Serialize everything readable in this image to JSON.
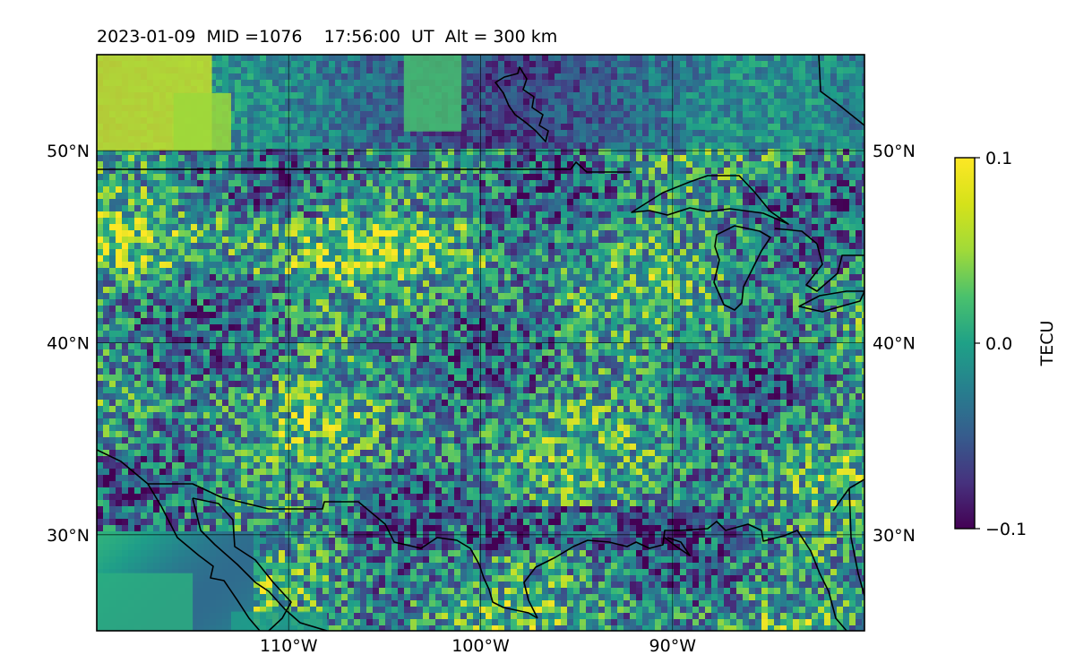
{
  "title": {
    "date": "2023-01-09",
    "mid": "MID =1076",
    "time": "17:56:00  UT",
    "alt": "Alt = 300 km"
  },
  "map": {
    "type": "heatmap",
    "projection": "plate-carree",
    "lon_range": [
      -120,
      -80
    ],
    "lat_range": [
      25,
      55
    ],
    "gridlines": true,
    "lon_ticks": [
      {
        "value": -110,
        "label": "110°W"
      },
      {
        "value": -100,
        "label": "100°W"
      },
      {
        "value": -90,
        "label": "90°W"
      }
    ],
    "lat_ticks": [
      {
        "value": 50,
        "label": "50°N"
      },
      {
        "value": 40,
        "label": "40°N"
      },
      {
        "value": 30,
        "label": "30°N"
      }
    ],
    "coastline_color": "#000000"
  },
  "colorbar": {
    "label": "TECU",
    "colormap": "viridis",
    "vmin": -0.1,
    "vmax": 0.1,
    "ticks": [
      {
        "value": 0.1,
        "label": "0.1"
      },
      {
        "value": 0.0,
        "label": "0.0"
      },
      {
        "value": -0.1,
        "label": "−0.1"
      }
    ]
  }
}
